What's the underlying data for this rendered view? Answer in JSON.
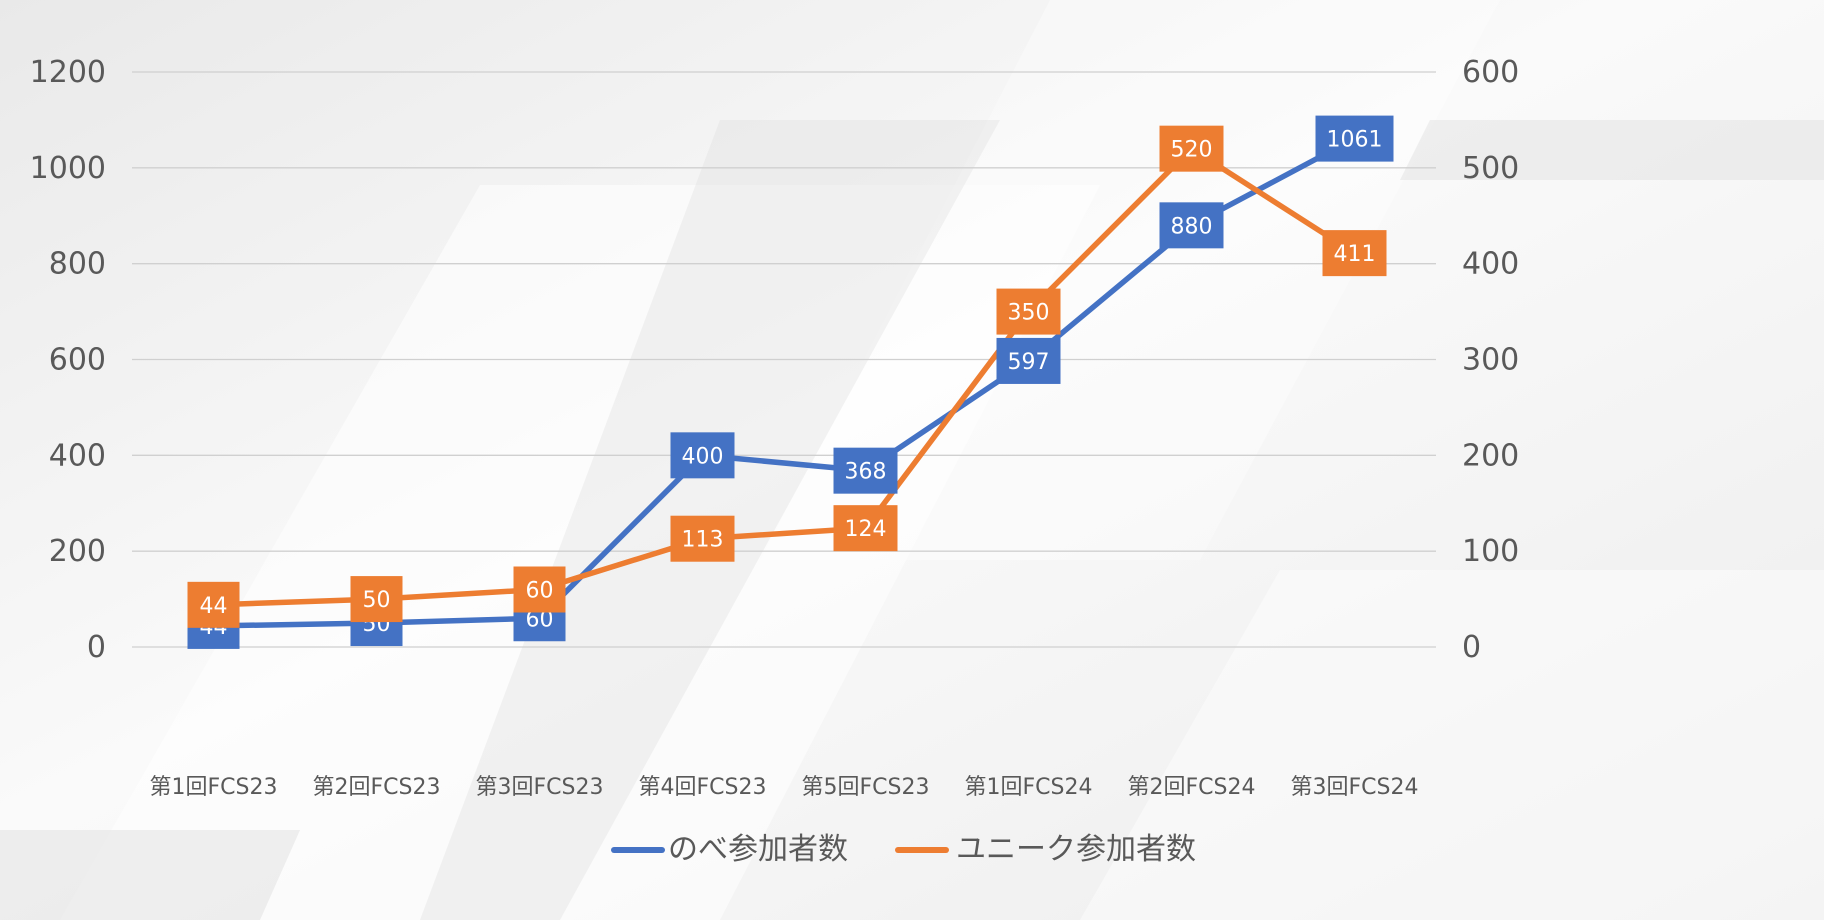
{
  "colors": {
    "series1": "#4472C4",
    "series2": "#ED7D31",
    "grid": "#D0D0D0",
    "text": "#595959",
    "label_text": "#FFFFFF"
  },
  "chart_data": {
    "type": "line",
    "title": "",
    "categories": [
      "第1回FCS23",
      "第2回FCS23",
      "第3回FCS23",
      "第4回FCS23",
      "第5回FCS23",
      "第1回FCS24",
      "第2回FCS24",
      "第3回FCS24"
    ],
    "series": [
      {
        "name": "のべ参加者数",
        "axis": "left",
        "values": [
          44,
          50,
          60,
          400,
          368,
          597,
          880,
          1061
        ]
      },
      {
        "name": "ユニーク参加者数",
        "axis": "right",
        "values": [
          44,
          50,
          60,
          113,
          124,
          350,
          520,
          411
        ]
      }
    ],
    "y_left": {
      "min": 0,
      "max": 1200,
      "ticks": [
        0,
        200,
        400,
        600,
        800,
        1000,
        1200
      ]
    },
    "y_right": {
      "min": 0,
      "max": 600,
      "ticks": [
        0,
        100,
        200,
        300,
        400,
        500,
        600
      ]
    },
    "grid": true,
    "legend_position": "bottom",
    "data_labels": true
  }
}
